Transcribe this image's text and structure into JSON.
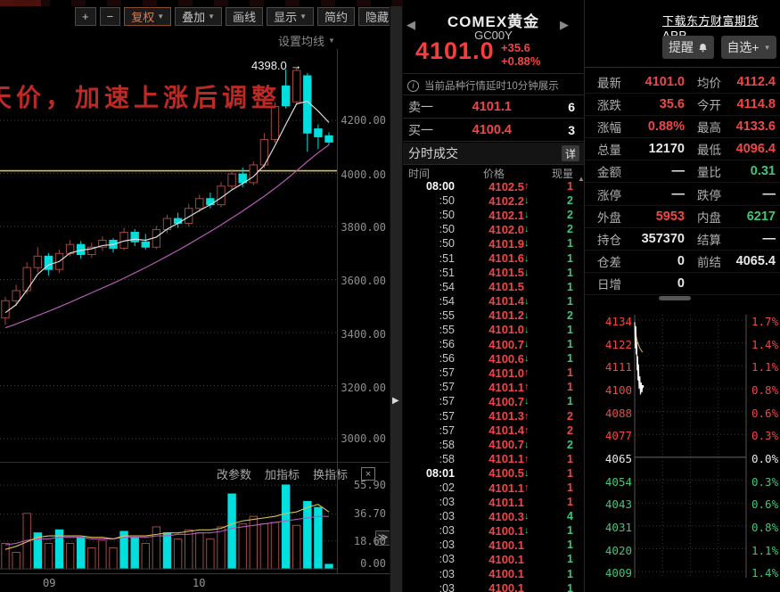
{
  "page": {
    "top_note": "天价，加速上涨后调整",
    "peak_label": "4398.0"
  },
  "toolbar": {
    "zoom_in": "+",
    "zoom_out": "−",
    "adjust": "复权",
    "overlay": "叠加",
    "draw": "画线",
    "display": "显示",
    "simple": "简约",
    "hide": "隐藏",
    "hide_arrows": "▶▶",
    "ma_settings": "设置均线"
  },
  "subchart_toolbar": {
    "edit_params": "改参数",
    "add_indicator": "加指标",
    "switch_indicator": "换指标",
    "close": "×",
    "expand": "≫"
  },
  "header": {
    "prev": "◀",
    "next": "▶",
    "title": "COMEX黄金",
    "code": "GC00Y",
    "price": "4101.0",
    "change": "+35.6",
    "change_pct": "+0.88%",
    "download_link": "下载东方财富期货APP",
    "alert_btn": "提醒",
    "watchlist_btn": "自选+"
  },
  "quote": {
    "delay_notice": "当前品种行情延时10分钟展示",
    "ask_label": "卖一",
    "ask_price": "4101.1",
    "ask_vol": "6",
    "bid_label": "买一",
    "bid_price": "4100.4",
    "bid_vol": "3",
    "ticks_title": "分时成交",
    "detail_btn": "详",
    "col_time": "时间",
    "col_price": "价格",
    "col_vol": "现量"
  },
  "ticks": [
    {
      "t": "08:00",
      "p": "4102.5",
      "d": "up",
      "v": "1",
      "vc": "red",
      "first": true
    },
    {
      "t": ":50",
      "p": "4102.2",
      "d": "down",
      "v": "2",
      "vc": "green"
    },
    {
      "t": ":50",
      "p": "4102.1",
      "d": "down",
      "v": "2",
      "vc": "green"
    },
    {
      "t": ":50",
      "p": "4102.0",
      "d": "down",
      "v": "2",
      "vc": "green"
    },
    {
      "t": ":50",
      "p": "4101.9",
      "d": "down",
      "v": "1",
      "vc": "green"
    },
    {
      "t": ":51",
      "p": "4101.6",
      "d": "down",
      "v": "1",
      "vc": "green"
    },
    {
      "t": ":51",
      "p": "4101.5",
      "d": "down",
      "v": "1",
      "vc": "green"
    },
    {
      "t": ":54",
      "p": "4101.5",
      "d": "none",
      "v": "1",
      "vc": "green"
    },
    {
      "t": ":54",
      "p": "4101.4",
      "d": "down",
      "v": "1",
      "vc": "green"
    },
    {
      "t": ":55",
      "p": "4101.2",
      "d": "down",
      "v": "2",
      "vc": "green"
    },
    {
      "t": ":55",
      "p": "4101.0",
      "d": "down",
      "v": "1",
      "vc": "green"
    },
    {
      "t": ":56",
      "p": "4100.7",
      "d": "down",
      "v": "1",
      "vc": "green"
    },
    {
      "t": ":56",
      "p": "4100.6",
      "d": "down",
      "v": "1",
      "vc": "green"
    },
    {
      "t": ":57",
      "p": "4101.0",
      "d": "up",
      "v": "1",
      "vc": "red"
    },
    {
      "t": ":57",
      "p": "4101.1",
      "d": "up",
      "v": "1",
      "vc": "red"
    },
    {
      "t": ":57",
      "p": "4100.7",
      "d": "down",
      "v": "1",
      "vc": "green"
    },
    {
      "t": ":57",
      "p": "4101.3",
      "d": "up",
      "v": "2",
      "vc": "red"
    },
    {
      "t": ":57",
      "p": "4101.4",
      "d": "up",
      "v": "2",
      "vc": "red"
    },
    {
      "t": ":58",
      "p": "4100.7",
      "d": "down",
      "v": "2",
      "vc": "green"
    },
    {
      "t": ":58",
      "p": "4101.1",
      "d": "up",
      "v": "1",
      "vc": "red"
    },
    {
      "t": "08:01",
      "p": "4100.5",
      "d": "down",
      "v": "1",
      "vc": "red",
      "first": true
    },
    {
      "t": ":02",
      "p": "4101.1",
      "d": "up",
      "v": "1",
      "vc": "red"
    },
    {
      "t": ":03",
      "p": "4101.1",
      "d": "none",
      "v": "1",
      "vc": "red"
    },
    {
      "t": ":03",
      "p": "4100.3",
      "d": "down",
      "v": "4",
      "vc": "green"
    },
    {
      "t": ":03",
      "p": "4100.1",
      "d": "down",
      "v": "1",
      "vc": "green"
    },
    {
      "t": ":03",
      "p": "4100.1",
      "d": "none",
      "v": "1",
      "vc": "green"
    },
    {
      "t": ":03",
      "p": "4100.1",
      "d": "none",
      "v": "1",
      "vc": "green"
    },
    {
      "t": ":03",
      "p": "4100.1",
      "d": "none",
      "v": "1",
      "vc": "green"
    },
    {
      "t": ":03",
      "p": "4100.1",
      "d": "none",
      "v": "1",
      "vc": "green"
    }
  ],
  "stats_rows": [
    {
      "l1": "最新",
      "v1": "4101.0",
      "c1": "red",
      "l2": "均价",
      "v2": "4112.4",
      "c2": "red"
    },
    {
      "l1": "涨跌",
      "v1": "35.6",
      "c1": "red",
      "l2": "今开",
      "v2": "4114.8",
      "c2": "red"
    },
    {
      "l1": "涨幅",
      "v1": "0.88%",
      "c1": "red",
      "l2": "最高",
      "v2": "4133.6",
      "c2": "red"
    },
    {
      "l1": "总量",
      "v1": "12170",
      "c1": "white",
      "l2": "最低",
      "v2": "4096.4",
      "c2": "red"
    },
    {
      "l1": "金额",
      "v1": "—",
      "c1": "white",
      "l2": "量比",
      "v2": "0.31",
      "c2": "green"
    },
    {
      "l1": "涨停",
      "v1": "—",
      "c1": "white",
      "l2": "跌停",
      "v2": "—",
      "c2": "white"
    },
    {
      "l1": "外盘",
      "v1": "5953",
      "c1": "red",
      "l2": "内盘",
      "v2": "6217",
      "c2": "green"
    },
    {
      "l1": "持仓",
      "v1": "357370",
      "c1": "white",
      "l2": "结算",
      "v2": "—",
      "c2": "white"
    },
    {
      "l1": "仓差",
      "v1": "0",
      "c1": "white",
      "l2": "前结",
      "v2": "4065.4",
      "c2": "white"
    },
    {
      "l1": "日增",
      "v1": "0",
      "c1": "white",
      "l2": "",
      "v2": "",
      "c2": "white"
    }
  ],
  "colors": {
    "up_red": "#f04646",
    "down_green": "#3dc878",
    "candle_up_outline": "#9e4a44",
    "candle_down_fill": "#00dede",
    "ma_white": "#dcdcdc",
    "ma_magenta": "#b65bb6",
    "yellow_line": "#d8c254",
    "accent_orange": "#d87a50"
  },
  "chart_data": [
    {
      "id": "main_kline",
      "type": "candlestick",
      "y_ticks": [
        "4200.00",
        "4000.00",
        "3800.00",
        "3600.00",
        "3400.00",
        "3200.00",
        "3000.00"
      ],
      "x_ticks": [
        "09",
        "10"
      ],
      "ylim": [
        2950,
        4430
      ],
      "grid": true,
      "annotation": {
        "text": "4398.0",
        "value": 4398.0
      },
      "hline": 4010,
      "candles_ohlc": [
        [
          3455,
          3535,
          3430,
          3520
        ],
        [
          3520,
          3580,
          3500,
          3558
        ],
        [
          3558,
          3665,
          3545,
          3645
        ],
        [
          3645,
          3722,
          3628,
          3688
        ],
        [
          3688,
          3700,
          3615,
          3638
        ],
        [
          3638,
          3712,
          3625,
          3698
        ],
        [
          3698,
          3748,
          3688,
          3732
        ],
        [
          3732,
          3745,
          3678,
          3694
        ],
        [
          3694,
          3738,
          3682,
          3722
        ],
        [
          3722,
          3762,
          3708,
          3748
        ],
        [
          3748,
          3756,
          3702,
          3718
        ],
        [
          3718,
          3795,
          3710,
          3778
        ],
        [
          3778,
          3790,
          3726,
          3742
        ],
        [
          3742,
          3772,
          3712,
          3722
        ],
        [
          3722,
          3802,
          3715,
          3788
        ],
        [
          3788,
          3845,
          3775,
          3830
        ],
        [
          3830,
          3852,
          3795,
          3812
        ],
        [
          3812,
          3885,
          3800,
          3868
        ],
        [
          3868,
          3920,
          3855,
          3905
        ],
        [
          3905,
          3928,
          3868,
          3882
        ],
        [
          3882,
          3968,
          3872,
          3952
        ],
        [
          3952,
          4015,
          3940,
          3998
        ],
        [
          3998,
          4022,
          3948,
          3965
        ],
        [
          3965,
          4045,
          3955,
          4032
        ],
        [
          4032,
          4152,
          4020,
          4128
        ],
        [
          4128,
          4268,
          4115,
          4252
        ],
        [
          4330,
          4392,
          4245,
          4255
        ],
        [
          4270,
          4398,
          4258,
          4388
        ],
        [
          4368,
          4378,
          4082,
          4152
        ],
        [
          4168,
          4185,
          4092,
          4138
        ],
        [
          4142,
          4155,
          4108,
          4118
        ]
      ],
      "ma_white": [
        3475,
        3505,
        3560,
        3620,
        3655,
        3668,
        3700,
        3710,
        3716,
        3728,
        3732,
        3745,
        3752,
        3748,
        3760,
        3790,
        3812,
        3836,
        3860,
        3882,
        3908,
        3938,
        3962,
        3988,
        4030,
        4105,
        4185,
        4262,
        4272,
        4235,
        4192
      ],
      "ma_magenta": [
        3418,
        3432,
        3448,
        3464,
        3480,
        3497,
        3514,
        3532,
        3550,
        3568,
        3586,
        3605,
        3625,
        3645,
        3666,
        3688,
        3710,
        3733,
        3757,
        3781,
        3806,
        3832,
        3858,
        3886,
        3914,
        3944,
        3976,
        4010,
        4045,
        4078,
        4108
      ]
    },
    {
      "id": "volume_indicator",
      "type": "bar",
      "y_ticks": [
        "55.90",
        "36.70",
        "18.60",
        "0.00"
      ],
      "ylim": [
        0,
        62
      ],
      "values": [
        17,
        11,
        37,
        24,
        17,
        26,
        17,
        21,
        14,
        19,
        14,
        25,
        21,
        17,
        28,
        24,
        20,
        26,
        24,
        20,
        28,
        50,
        30,
        35,
        30,
        31,
        56,
        29,
        45,
        41,
        3
      ],
      "bar_colors": [
        "r",
        "r",
        "r",
        "c",
        "r",
        "c",
        "r",
        "c",
        "r",
        "r",
        "r",
        "c",
        "c",
        "r",
        "r",
        "c",
        "r",
        "r",
        "r",
        "r",
        "r",
        "c",
        "r",
        "r",
        "r",
        "r",
        "c",
        "r",
        "c",
        "c",
        "c"
      ],
      "ma_magenta": [
        16,
        17,
        19,
        20,
        20,
        21,
        21,
        21,
        20,
        20,
        20,
        21,
        21,
        21,
        22,
        22,
        23,
        23,
        24,
        24,
        25,
        27,
        28,
        29,
        30,
        31,
        32,
        33,
        34,
        35,
        35
      ],
      "ma_yellow": [
        13,
        15,
        18,
        21,
        22,
        22,
        22,
        22,
        21,
        21,
        20,
        22,
        22,
        22,
        23,
        24,
        24,
        25,
        26,
        26,
        27,
        30,
        32,
        33,
        34,
        35,
        37,
        38,
        41,
        43,
        38
      ]
    },
    {
      "id": "intraday_mini",
      "type": "line",
      "left_ticks": [
        "4134",
        "4122",
        "4111",
        "4100",
        "4088",
        "4077",
        "4065",
        "4054",
        "4043",
        "4031",
        "4020",
        "4009"
      ],
      "right_ticks": [
        "1.7%",
        "1.4%",
        "1.1%",
        "0.8%",
        "0.6%",
        "0.3%",
        "0.0%",
        "0.3%",
        "0.6%",
        "0.8%",
        "1.1%",
        "1.4%"
      ],
      "prev_close": 4065.4,
      "ylim": [
        4009,
        4134
      ],
      "price": {
        "x": [
          0,
          0.006,
          0.01,
          0.014,
          0.018,
          0.022,
          0.026,
          0.03,
          0.034,
          0.04,
          0.046,
          0.052,
          0.058,
          0.064,
          0.07
        ],
        "y": [
          4133,
          4120,
          4131,
          4117,
          4123,
          4109,
          4116,
          4104,
          4112,
          4100,
          4106,
          4097,
          4103,
          4098,
          4101
        ]
      },
      "avg": {
        "x": [
          0,
          0.02,
          0.045,
          0.07
        ],
        "y": [
          4131,
          4124,
          4120,
          4118
        ]
      }
    }
  ]
}
